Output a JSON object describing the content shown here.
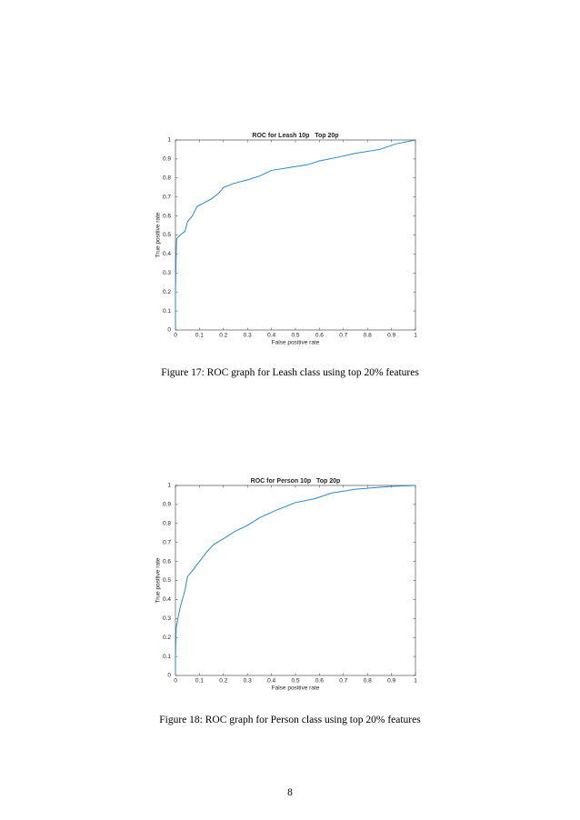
{
  "chart_data": [
    {
      "type": "line",
      "title": "ROC for Leash 10p   Top 20p",
      "x_label": "False positive rate",
      "y_label": "True positive rate",
      "x": [
        0,
        0,
        0.003,
        0.005,
        0.02,
        0.04,
        0.05,
        0.07,
        0.09,
        0.12,
        0.15,
        0.18,
        0.2,
        0.24,
        0.3,
        0.35,
        0.4,
        0.5,
        0.55,
        0.6,
        0.68,
        0.75,
        0.85,
        0.92,
        1
      ],
      "series": [
        {
          "color": "#2c86c6",
          "values": [
            0,
            0.2,
            0.4,
            0.48,
            0.5,
            0.52,
            0.57,
            0.6,
            0.65,
            0.67,
            0.69,
            0.72,
            0.75,
            0.77,
            0.79,
            0.81,
            0.84,
            0.86,
            0.87,
            0.89,
            0.91,
            0.93,
            0.95,
            0.98,
            1
          ]
        }
      ],
      "xlim": [
        0,
        1
      ],
      "ylim": [
        0,
        1
      ],
      "xticks": [
        0,
        0.1,
        0.2,
        0.3,
        0.4,
        0.5,
        0.6,
        0.7,
        0.8,
        0.9,
        1
      ],
      "yticks": [
        0,
        0.1,
        0.2,
        0.3,
        0.4,
        0.5,
        0.6,
        0.7,
        0.8,
        0.9,
        1
      ],
      "grid": false
    },
    {
      "type": "line",
      "title": "ROC for Person 10p   Top 20p",
      "x_label": "False positive rate",
      "y_label": "True positive rate",
      "x": [
        0,
        0,
        0.003,
        0.01,
        0.02,
        0.04,
        0.05,
        0.07,
        0.1,
        0.13,
        0.16,
        0.2,
        0.25,
        0.3,
        0.35,
        0.42,
        0.5,
        0.58,
        0.65,
        0.75,
        0.9,
        1
      ],
      "series": [
        {
          "color": "#2c86c6",
          "values": [
            0,
            0.1,
            0.25,
            0.3,
            0.36,
            0.45,
            0.52,
            0.55,
            0.6,
            0.65,
            0.69,
            0.72,
            0.76,
            0.79,
            0.83,
            0.87,
            0.91,
            0.93,
            0.96,
            0.98,
            0.995,
            1
          ]
        }
      ],
      "xlim": [
        0,
        1
      ],
      "ylim": [
        0,
        1
      ],
      "xticks": [
        0,
        0.1,
        0.2,
        0.3,
        0.4,
        0.5,
        0.6,
        0.7,
        0.8,
        0.9,
        1
      ],
      "yticks": [
        0,
        0.1,
        0.2,
        0.3,
        0.4,
        0.5,
        0.6,
        0.7,
        0.8,
        0.9,
        1
      ],
      "grid": false
    }
  ],
  "captions": [
    "Figure 17: ROC graph for Leash class using top 20% features",
    "Figure 18: ROC graph for Person class using top 20% features"
  ],
  "page_number": "8"
}
